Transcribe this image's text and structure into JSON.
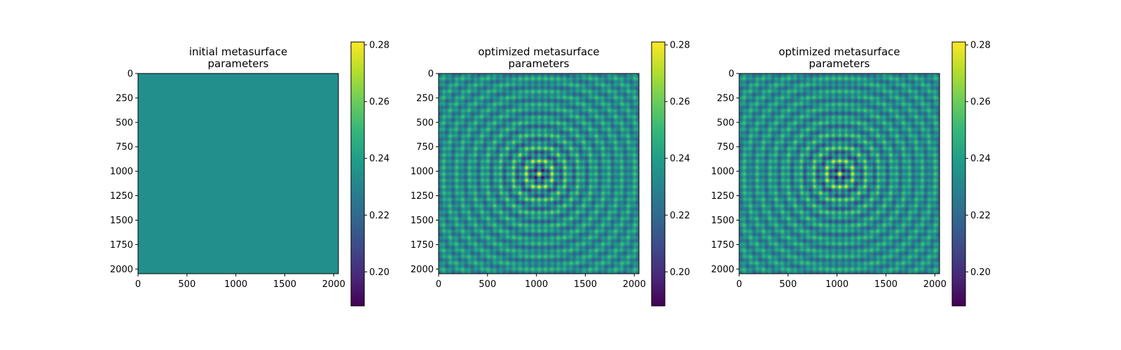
{
  "chart_data": [
    {
      "type": "heatmap",
      "title_lines": [
        "initial metasurface",
        "parameters"
      ],
      "pattern": "uniform",
      "uniform_value": 0.234,
      "xlim": [
        0,
        2048
      ],
      "ylim": [
        2048,
        0
      ],
      "xticks": [
        0,
        500,
        1000,
        1500,
        2000
      ],
      "yticks": [
        0,
        250,
        500,
        750,
        1000,
        1250,
        1500,
        1750,
        2000
      ],
      "colormap": "viridis",
      "colorbar": {
        "range": [
          0.188,
          0.281
        ],
        "ticks": [
          0.2,
          0.22,
          0.24,
          0.26,
          0.28
        ]
      }
    },
    {
      "type": "heatmap",
      "title_lines": [
        "optimized metasurface",
        "parameters"
      ],
      "pattern": "concentric-ring-interference centered at (1024, 1024)",
      "xlim": [
        0,
        2048
      ],
      "ylim": [
        2048,
        0
      ],
      "xticks": [
        0,
        500,
        1000,
        1500,
        2000
      ],
      "yticks": [
        0,
        250,
        500,
        750,
        1000,
        1250,
        1500,
        1750,
        2000
      ],
      "colormap": "viridis",
      "colorbar": {
        "range": [
          0.188,
          0.281
        ],
        "ticks": [
          0.2,
          0.22,
          0.24,
          0.26,
          0.28
        ]
      }
    },
    {
      "type": "heatmap",
      "title_lines": [
        "optimized metasurface",
        "parameters"
      ],
      "pattern": "concentric-ring-interference centered at (1024, 1024)",
      "xlim": [
        0,
        2048
      ],
      "ylim": [
        2048,
        0
      ],
      "xticks": [
        0,
        500,
        1000,
        1500,
        2000
      ],
      "yticks": [
        0,
        250,
        500,
        750,
        1000,
        1250,
        1500,
        1750,
        2000
      ],
      "colormap": "viridis",
      "colorbar": {
        "range": [
          0.188,
          0.281
        ],
        "ticks": [
          0.2,
          0.22,
          0.24,
          0.26,
          0.28
        ]
      }
    }
  ]
}
